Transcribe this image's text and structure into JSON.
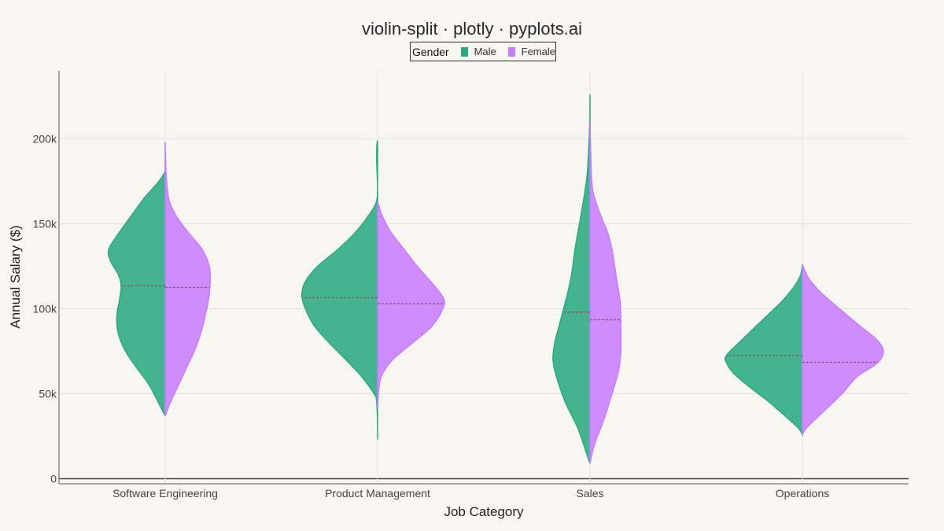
{
  "chart_data": {
    "type": "violin",
    "variant": "split",
    "title": "violin-split · plotly · pyplots.ai",
    "xlabel": "Job Category",
    "ylabel": "Annual Salary ($)",
    "categories": [
      "Software Engineering",
      "Product Management",
      "Sales",
      "Operations"
    ],
    "ylim": [
      -3000,
      240000
    ],
    "yticks": [
      0,
      50000,
      100000,
      150000,
      200000
    ],
    "ytick_labels": [
      "0",
      "50k",
      "100k",
      "150k",
      "200k"
    ],
    "grid": true,
    "legend": {
      "title": "Gender",
      "placement": "top-center",
      "entries": [
        {
          "name": "Male",
          "color": "#2AAA82"
        },
        {
          "name": "Female",
          "color": "#C77DFF"
        }
      ]
    },
    "median_line_color": "#8a5a5a",
    "series": [
      {
        "name": "Male",
        "side": "negative",
        "color": "#2AAA82",
        "violins": [
          {
            "category": "Software Engineering",
            "median": 113500,
            "profile": [
              [
                37000,
                0.0
              ],
              [
                42000,
                0.05
              ],
              [
                55000,
                0.18
              ],
              [
                65000,
                0.32
              ],
              [
                75000,
                0.45
              ],
              [
                85000,
                0.53
              ],
              [
                95000,
                0.55
              ],
              [
                105000,
                0.52
              ],
              [
                113000,
                0.5
              ],
              [
                120000,
                0.53
              ],
              [
                128000,
                0.62
              ],
              [
                135000,
                0.64
              ],
              [
                145000,
                0.52
              ],
              [
                155000,
                0.38
              ],
              [
                165000,
                0.24
              ],
              [
                172000,
                0.12
              ],
              [
                178000,
                0.03
              ],
              [
                181000,
                0.0
              ]
            ]
          },
          {
            "category": "Product Management",
            "median": 106500,
            "profile": [
              [
                23000,
                0.0
              ],
              [
                30000,
                0.0
              ],
              [
                45000,
                0.01
              ],
              [
                50000,
                0.04
              ],
              [
                60000,
                0.18
              ],
              [
                70000,
                0.36
              ],
              [
                80000,
                0.55
              ],
              [
                90000,
                0.72
              ],
              [
                100000,
                0.82
              ],
              [
                108000,
                0.86
              ],
              [
                116000,
                0.82
              ],
              [
                125000,
                0.68
              ],
              [
                135000,
                0.45
              ],
              [
                145000,
                0.25
              ],
              [
                155000,
                0.1
              ],
              [
                162000,
                0.02
              ],
              [
                170000,
                0.0
              ],
              [
                185000,
                0.01
              ],
              [
                195000,
                0.01
              ],
              [
                199000,
                0.0
              ]
            ]
          },
          {
            "category": "Sales",
            "median": 98000,
            "profile": [
              [
                9000,
                0.0
              ],
              [
                15000,
                0.04
              ],
              [
                30000,
                0.14
              ],
              [
                45000,
                0.28
              ],
              [
                60000,
                0.38
              ],
              [
                70000,
                0.42
              ],
              [
                80000,
                0.4
              ],
              [
                90000,
                0.35
              ],
              [
                100000,
                0.3
              ],
              [
                110000,
                0.25
              ],
              [
                120000,
                0.21
              ],
              [
                135000,
                0.17
              ],
              [
                150000,
                0.12
              ],
              [
                165000,
                0.07
              ],
              [
                180000,
                0.03
              ],
              [
                200000,
                0.01
              ],
              [
                215000,
                0.0
              ],
              [
                226000,
                0.0
              ]
            ]
          },
          {
            "category": "Operations",
            "median": 72500,
            "profile": [
              [
                26000,
                0.0
              ],
              [
                30000,
                0.05
              ],
              [
                38000,
                0.22
              ],
              [
                46000,
                0.4
              ],
              [
                54000,
                0.6
              ],
              [
                62000,
                0.78
              ],
              [
                68000,
                0.86
              ],
              [
                72000,
                0.87
              ],
              [
                78000,
                0.76
              ],
              [
                86000,
                0.6
              ],
              [
                95000,
                0.42
              ],
              [
                105000,
                0.22
              ],
              [
                114000,
                0.08
              ],
              [
                120000,
                0.02
              ],
              [
                126000,
                0.0
              ]
            ]
          }
        ]
      },
      {
        "name": "Female",
        "side": "positive",
        "color": "#C77DFF",
        "violins": [
          {
            "category": "Software Engineering",
            "median": 112500,
            "profile": [
              [
                37000,
                0.0
              ],
              [
                45000,
                0.06
              ],
              [
                55000,
                0.15
              ],
              [
                65000,
                0.24
              ],
              [
                75000,
                0.33
              ],
              [
                85000,
                0.4
              ],
              [
                95000,
                0.45
              ],
              [
                105000,
                0.49
              ],
              [
                115000,
                0.51
              ],
              [
                125000,
                0.5
              ],
              [
                135000,
                0.42
              ],
              [
                145000,
                0.26
              ],
              [
                155000,
                0.12
              ],
              [
                165000,
                0.04
              ],
              [
                180000,
                0.01
              ],
              [
                198000,
                0.0
              ]
            ]
          },
          {
            "category": "Product Management",
            "median": 103000,
            "profile": [
              [
                41000,
                0.0
              ],
              [
                50000,
                0.01
              ],
              [
                60000,
                0.04
              ],
              [
                70000,
                0.17
              ],
              [
                80000,
                0.4
              ],
              [
                90000,
                0.62
              ],
              [
                100000,
                0.74
              ],
              [
                106000,
                0.75
              ],
              [
                115000,
                0.62
              ],
              [
                125000,
                0.45
              ],
              [
                135000,
                0.3
              ],
              [
                145000,
                0.15
              ],
              [
                155000,
                0.05
              ],
              [
                163000,
                0.0
              ]
            ]
          },
          {
            "category": "Sales",
            "median": 93500,
            "profile": [
              [
                9000,
                0.0
              ],
              [
                20000,
                0.05
              ],
              [
                35000,
                0.16
              ],
              [
                45000,
                0.22
              ],
              [
                55000,
                0.28
              ],
              [
                65000,
                0.33
              ],
              [
                75000,
                0.35
              ],
              [
                85000,
                0.35
              ],
              [
                95000,
                0.35
              ],
              [
                105000,
                0.34
              ],
              [
                115000,
                0.31
              ],
              [
                125000,
                0.28
              ],
              [
                135000,
                0.25
              ],
              [
                145000,
                0.2
              ],
              [
                155000,
                0.12
              ],
              [
                170000,
                0.03
              ],
              [
                190000,
                0.01
              ],
              [
                210000,
                0.0
              ]
            ]
          },
          {
            "category": "Operations",
            "median": 68500,
            "profile": [
              [
                26000,
                0.0
              ],
              [
                30000,
                0.05
              ],
              [
                40000,
                0.25
              ],
              [
                50000,
                0.45
              ],
              [
                60000,
                0.62
              ],
              [
                68000,
                0.85
              ],
              [
                75000,
                0.92
              ],
              [
                82000,
                0.84
              ],
              [
                90000,
                0.65
              ],
              [
                100000,
                0.42
              ],
              [
                110000,
                0.2
              ],
              [
                118000,
                0.07
              ],
              [
                126000,
                0.0
              ]
            ]
          }
        ]
      }
    ]
  }
}
